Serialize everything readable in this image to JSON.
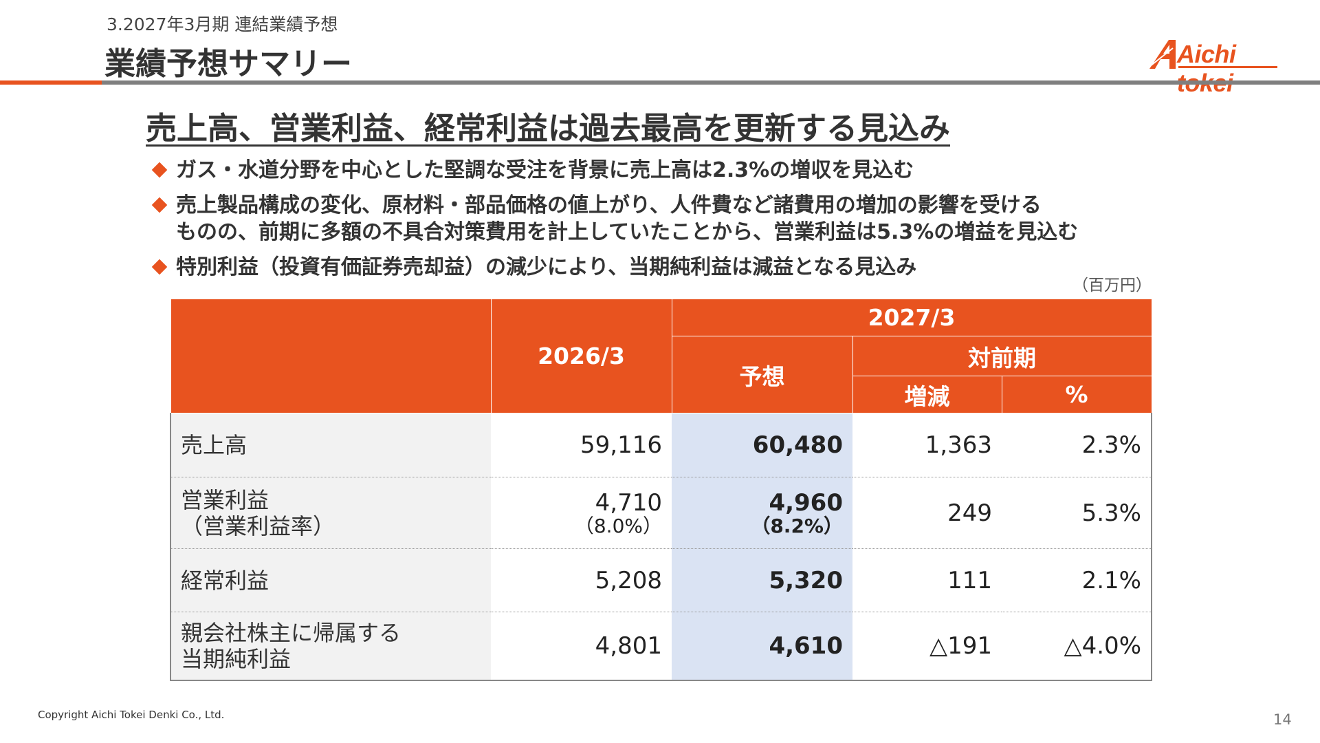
{
  "header": {
    "section_label": "3.2027年3月期 連結業績予想",
    "title": "業績予想サマリー",
    "logo_text": "Aichi tokei"
  },
  "headline": "売上高、営業利益、経常利益は過去最高を更新する見込み",
  "bullets": [
    {
      "lines": [
        "ガス・水道分野を中心とした堅調な受注を背景に売上高は2.3%の増収を見込む"
      ]
    },
    {
      "lines": [
        "売上製品構成の変化、原材料・部品価格の値上がり、人件費など諸費用の増加の影響を受ける",
        "ものの、前期に多額の不具合対策費用を計上していたことから、営業利益は5.3%の増益を見込む"
      ]
    },
    {
      "lines": [
        "特別利益（投資有価証券売却益）の減少により、当期純利益は減益となる見込み"
      ]
    }
  ],
  "unit": "（百万円）",
  "table": {
    "headers": {
      "prev": "2026/3",
      "next": "2027/3",
      "forecast": "予想",
      "yoy": "対前期",
      "change": "増減",
      "pct": "%"
    },
    "rows": [
      {
        "label": [
          "売上高"
        ],
        "prev": "59,116",
        "forecast": "60,480",
        "change": "1,363",
        "pct": "2.3%"
      },
      {
        "label": [
          "営業利益",
          "（営業利益率）"
        ],
        "prev": "4,710",
        "prev_sub": "（8.0%）",
        "forecast": "4,960",
        "forecast_sub": "（8.2%）",
        "change": "249",
        "pct": "5.3%"
      },
      {
        "label": [
          "経常利益"
        ],
        "prev": "5,208",
        "forecast": "5,320",
        "change": "111",
        "pct": "2.1%"
      },
      {
        "label": [
          "親会社株主に帰属する",
          "当期純利益"
        ],
        "prev": "4,801",
        "forecast": "4,610",
        "change": "△191",
        "pct": "△4.0%"
      }
    ]
  },
  "footer": {
    "copyright": "Copyright Aichi Tokei Denki Co., Ltd.",
    "page_number": "14"
  },
  "colors": {
    "accent": "#e8531f",
    "forecast_column": "#dae3f3",
    "label_column": "#f2f2f2",
    "header_rule": "#7f7f7f"
  }
}
